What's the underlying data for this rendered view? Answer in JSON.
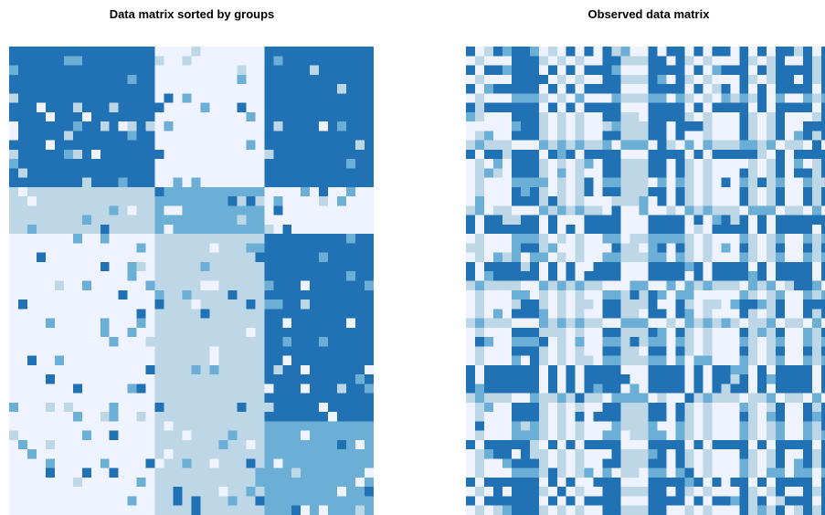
{
  "chart_data": [
    {
      "type": "heatmap",
      "title": "Data matrix sorted by groups",
      "xlabel": "",
      "ylabel": "",
      "grid": false,
      "legend": "none",
      "color_scale": [
        "#eff3ff",
        "#bdd7e7",
        "#6baed6",
        "#2171b5"
      ],
      "column_groups": [
        {
          "cols": 16
        },
        {
          "cols": 12
        },
        {
          "cols": 12
        }
      ],
      "row_groups": [
        {
          "rows": 15,
          "block_levels": [
            3,
            0,
            3
          ]
        },
        {
          "rows": 5,
          "block_levels": [
            1,
            2,
            0
          ]
        },
        {
          "rows": 20,
          "block_levels": [
            0,
            1,
            3
          ]
        },
        {
          "rows": 10,
          "block_levels": [
            0,
            1,
            2
          ]
        }
      ],
      "noise_fraction": 0.12
    },
    {
      "type": "heatmap",
      "title": "Observed data matrix",
      "xlabel": "",
      "ylabel": "",
      "grid": false,
      "legend": "none",
      "color_scale": [
        "#eff3ff",
        "#bdd7e7",
        "#6baed6",
        "#2171b5"
      ],
      "note": "",
      "permuted_rows": true,
      "permuted_cols": true
    }
  ]
}
